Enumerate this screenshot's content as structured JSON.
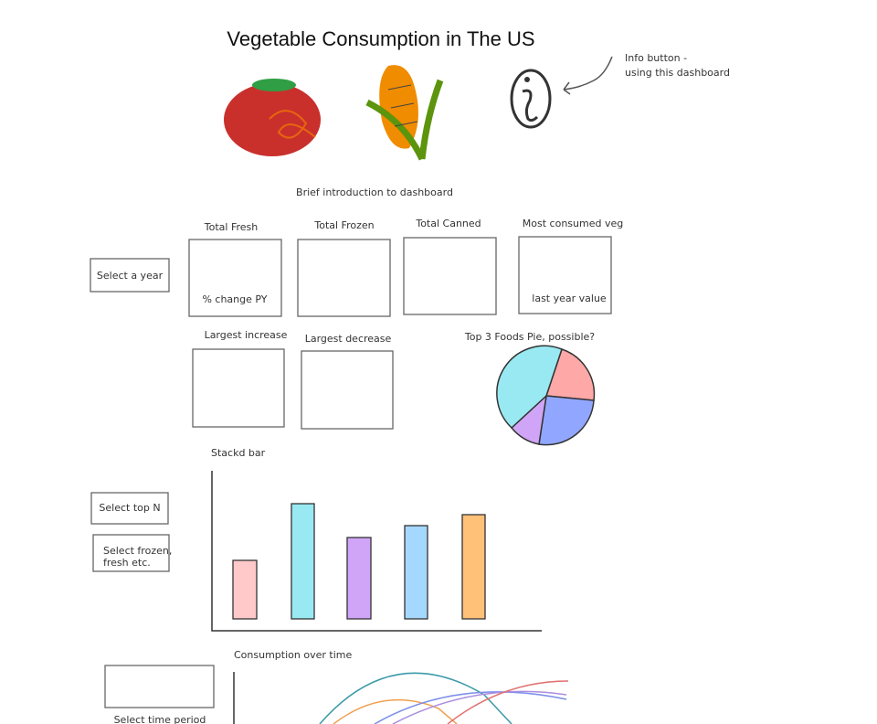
{
  "header": {
    "title": "Vegetable Consumption in The US",
    "info_note": [
      "Info button -",
      "using this dashboard"
    ],
    "intro": "Brief introduction to dashboard"
  },
  "kpis": [
    {
      "label": "Total Fresh",
      "note": "% change PY"
    },
    {
      "label": "Total Frozen"
    },
    {
      "label": "Total Canned"
    },
    {
      "label": "Most consumed veg",
      "note": "last year value"
    }
  ],
  "changes": [
    "Largest increase",
    "Largest decrease"
  ],
  "pie": {
    "title": "Top 3 Foods Pie, possible?"
  },
  "filters": {
    "year": "Select a year",
    "top_n": "Select top N",
    "type": [
      "Select frozen,",
      "fresh etc."
    ],
    "time": "Select time period"
  },
  "bar": {
    "title": "Stackd bar"
  },
  "line": {
    "title": "Consumption over time"
  }
}
